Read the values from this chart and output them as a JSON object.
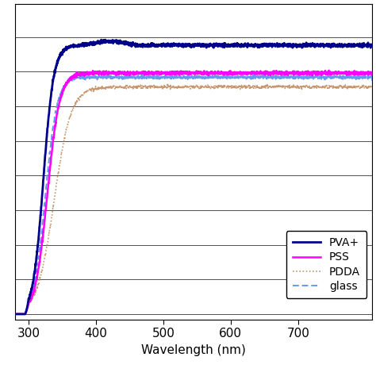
{
  "title": "",
  "xlabel": "Wavelength (nm)",
  "ylabel": "",
  "xlim": [
    280,
    810
  ],
  "ylim": [
    -0.02,
    1.12
  ],
  "x_ticks": [
    300,
    400,
    500,
    600,
    700
  ],
  "hlines_count": 9,
  "series": {
    "PVA+": {
      "color": "#00008B",
      "linewidth": 2.0,
      "linestyle": "solid",
      "zorder": 5,
      "plateau": 0.97,
      "mid": 322,
      "steep": 0.13
    },
    "PSS": {
      "color": "#FF00FF",
      "linewidth": 1.8,
      "linestyle": "solid",
      "zorder": 4,
      "plateau": 0.87,
      "mid": 328,
      "steep": 0.11
    },
    "PDDA": {
      "color": "#C8956C",
      "linewidth": 1.2,
      "linestyle": "dotted",
      "zorder": 3,
      "plateau": 0.82,
      "mid": 338,
      "steep": 0.08
    },
    "glass": {
      "color": "#6699EE",
      "linewidth": 1.4,
      "linestyle": "dashed",
      "zorder": 4,
      "plateau": 0.855,
      "mid": 325,
      "steep": 0.115
    }
  },
  "background_color": "#FFFFFF",
  "legend_order": [
    "PVA+",
    "PSS",
    "PDDA",
    "glass"
  ],
  "legend_loc": "lower right",
  "font_size": 11,
  "figsize": [
    4.74,
    4.74
  ],
  "dpi": 100
}
